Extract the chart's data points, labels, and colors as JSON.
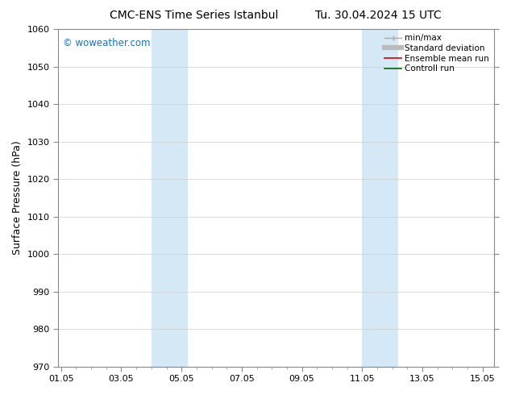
{
  "title_left": "CMC-ENS Time Series Istanbul",
  "title_right": "Tu. 30.04.2024 15 UTC",
  "ylabel": "Surface Pressure (hPa)",
  "ylim": [
    970,
    1060
  ],
  "yticks": [
    970,
    980,
    990,
    1000,
    1010,
    1020,
    1030,
    1040,
    1050,
    1060
  ],
  "xtick_labels": [
    "01.05",
    "03.05",
    "05.05",
    "07.05",
    "09.05",
    "11.05",
    "13.05",
    "15.05"
  ],
  "xtick_positions": [
    0,
    2,
    4,
    6,
    8,
    10,
    12,
    14
  ],
  "xmin": -0.1,
  "xmax": 14.4,
  "shaded_bands": [
    {
      "xmin": 3.0,
      "xmax": 4.2
    },
    {
      "xmin": 10.0,
      "xmax": 11.2
    }
  ],
  "shade_color": "#d4e8f5",
  "background_color": "#ffffff",
  "watermark_text": "© woweather.com",
  "watermark_color": "#1a6ec4",
  "grid_color": "#cccccc",
  "spine_color": "#888888",
  "title_fontsize": 10,
  "ylabel_fontsize": 9,
  "tick_fontsize": 8,
  "legend_fontsize": 7.5,
  "watermark_fontsize": 8.5
}
